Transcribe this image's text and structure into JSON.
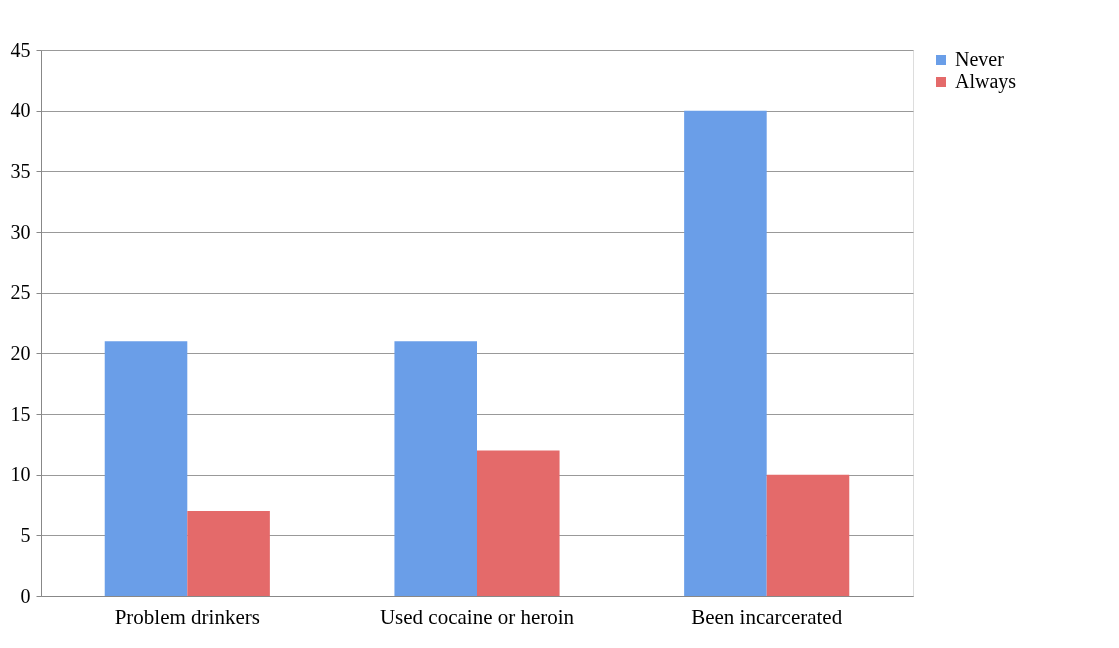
{
  "chart_data": {
    "type": "bar",
    "categories": [
      "Problem drinkers",
      "Used cocaine or heroin",
      "Been incarcerated"
    ],
    "series": [
      {
        "name": "Never",
        "color": "#6a9ee8",
        "values": [
          21,
          21,
          40
        ]
      },
      {
        "name": "Always",
        "color": "#e46a6a",
        "values": [
          7,
          12,
          10
        ]
      }
    ],
    "ylim": [
      0,
      45
    ],
    "yticks": [
      0,
      5,
      10,
      15,
      20,
      25,
      30,
      35,
      40,
      45
    ],
    "grid": "y",
    "legend": "right"
  }
}
